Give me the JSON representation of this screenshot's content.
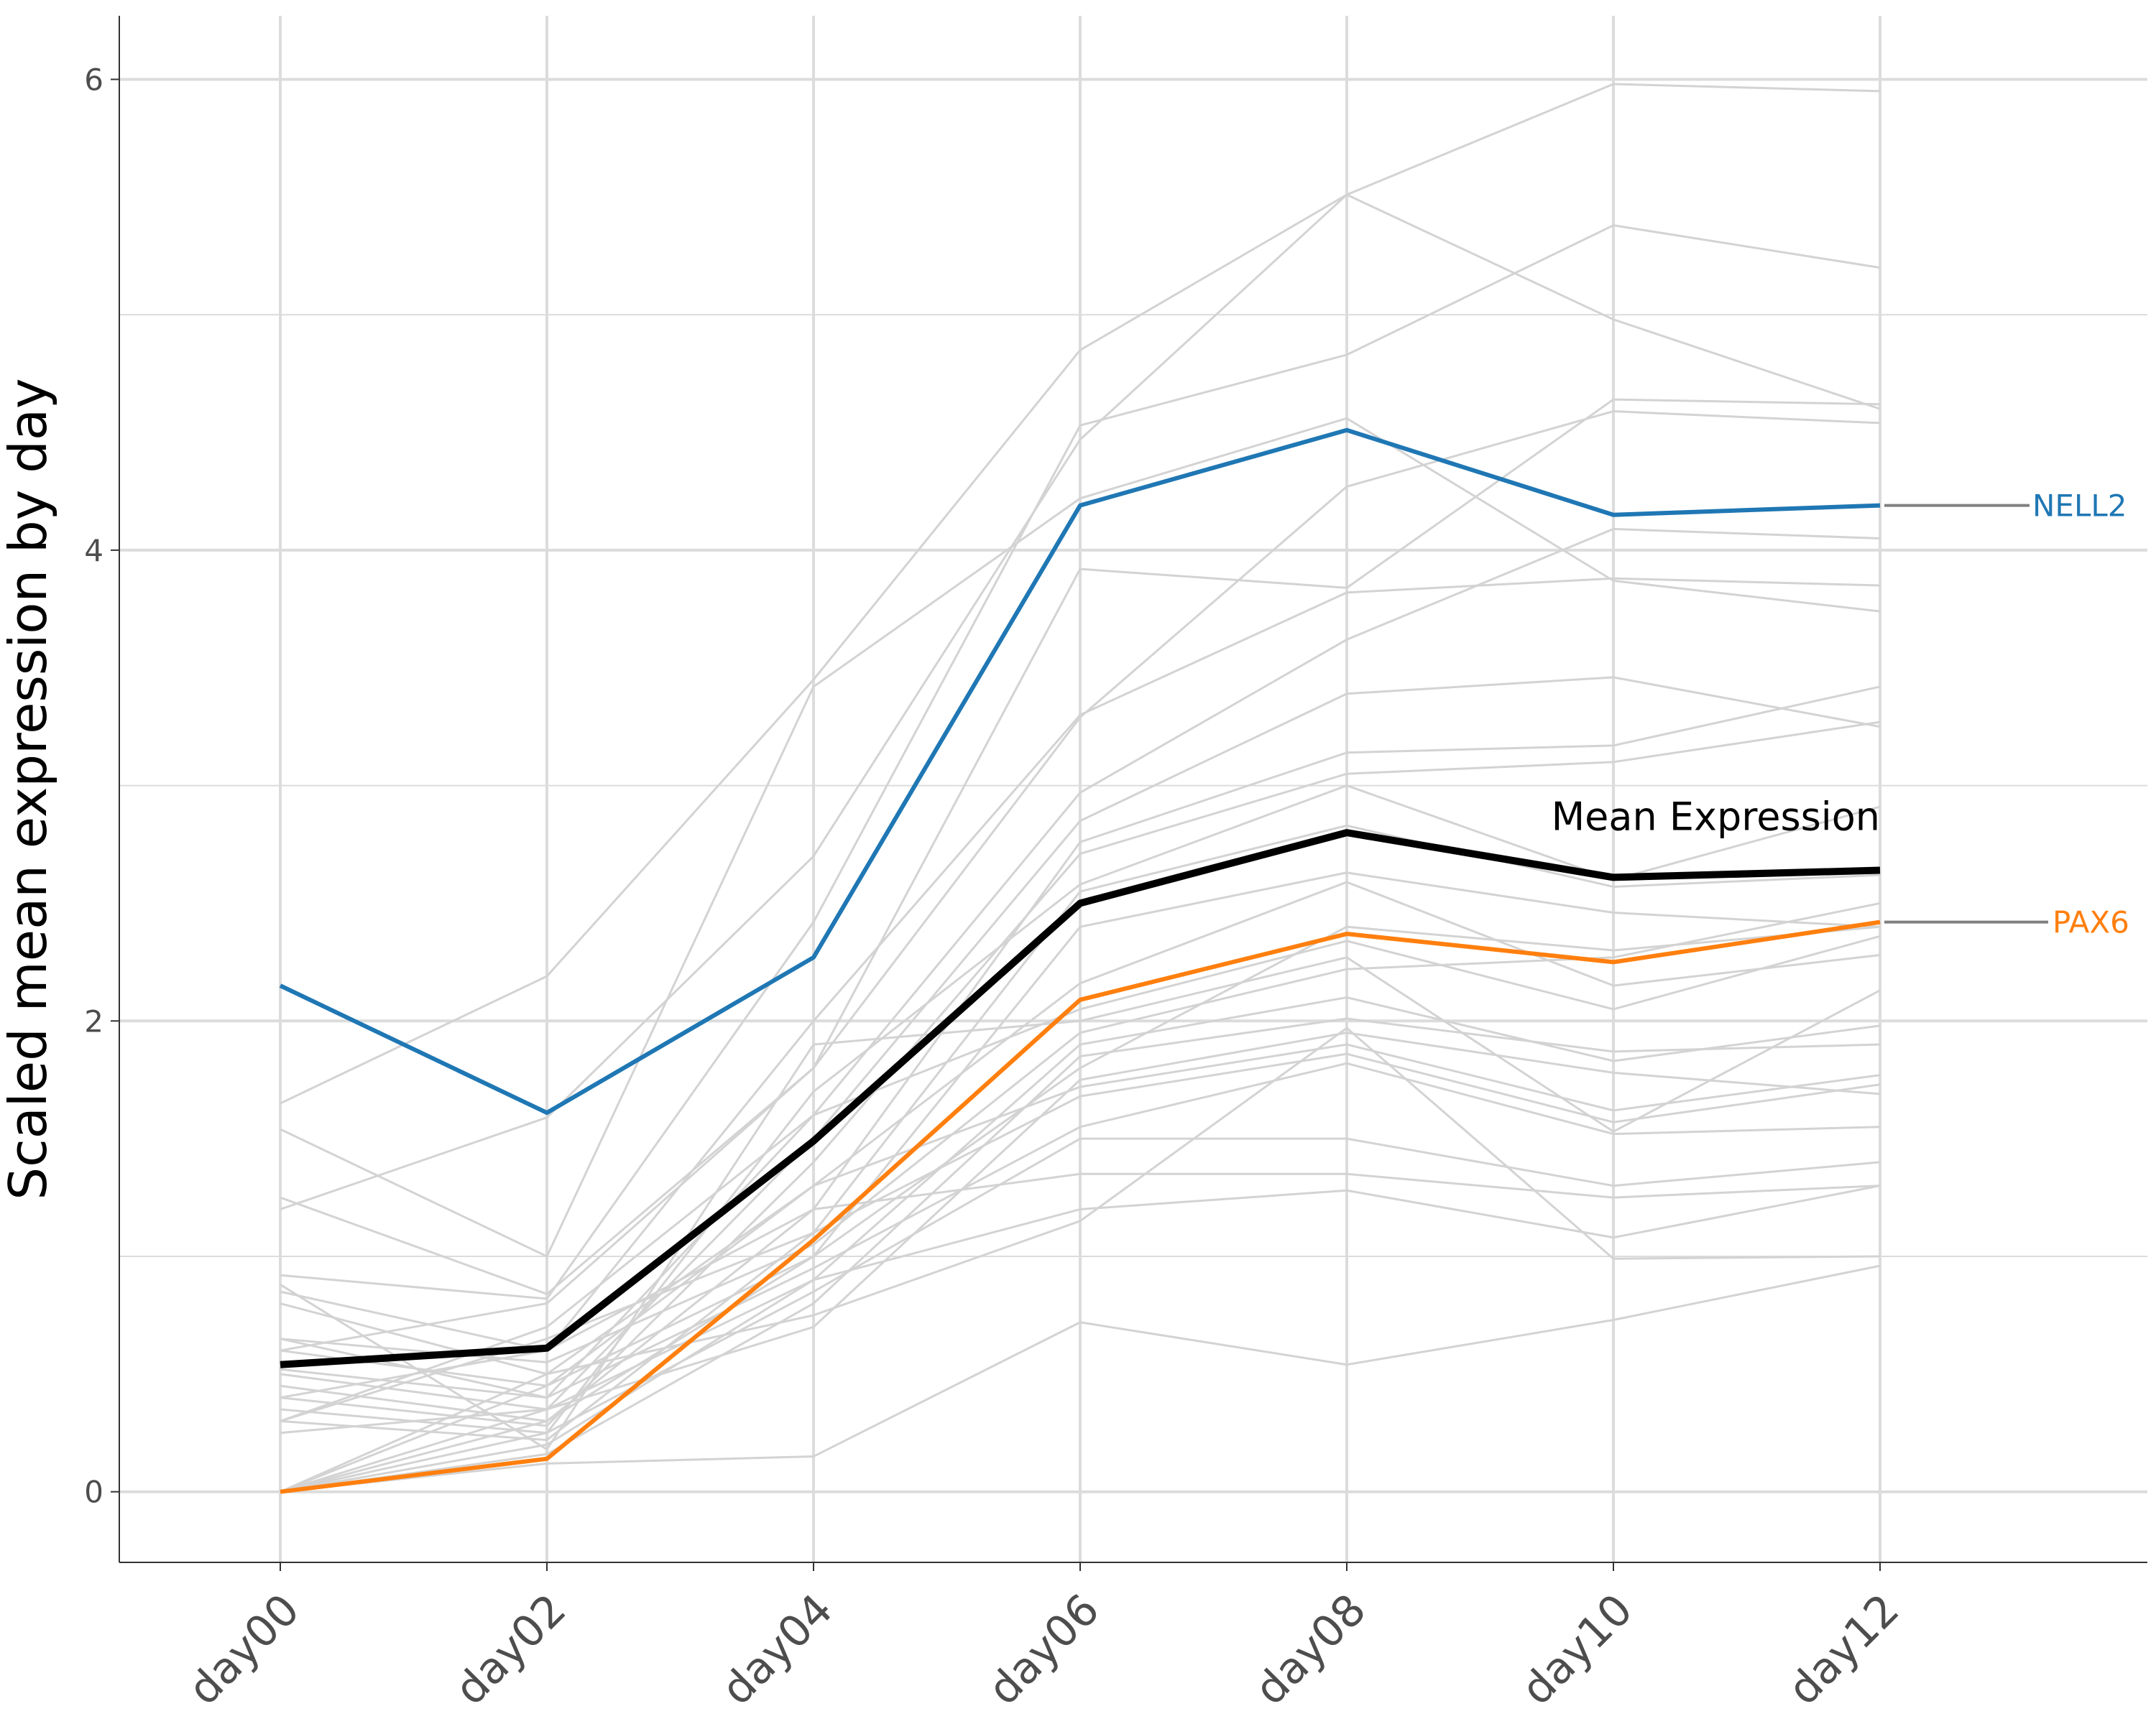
{
  "chart_data": {
    "type": "line",
    "title": "",
    "xlabel": "",
    "ylabel": "Scaled mean expression by day",
    "categories": [
      "day00",
      "day02",
      "day04",
      "day06",
      "day08",
      "day10",
      "day12"
    ],
    "ylim": [
      -0.3,
      6.27
    ],
    "yticks": [
      0,
      2,
      4,
      6
    ],
    "grid": true,
    "legend": "none",
    "colors": {
      "background_line": "#d3d3d3",
      "mean": "#000000",
      "NELL2": "#1f77b4",
      "PAX6": "#ff7f0e",
      "connector": "#808080",
      "grid": "#dcdcdc",
      "tick_text": "#4d4d4d"
    },
    "background_series": [
      [
        1.65,
        2.19,
        3.45,
        4.85,
        5.51,
        5.98,
        5.95
      ],
      [
        1.2,
        1.59,
        2.7,
        4.47,
        5.51,
        4.98,
        4.6
      ],
      [
        0.92,
        0.82,
        2.42,
        4.53,
        4.83,
        5.38,
        5.2
      ],
      [
        1.54,
        1.0,
        3.42,
        4.22,
        4.56,
        3.87,
        3.74
      ],
      [
        0.6,
        0.8,
        1.8,
        3.92,
        3.84,
        4.64,
        4.62
      ],
      [
        1.25,
        0.84,
        1.8,
        3.29,
        4.27,
        4.59,
        4.54
      ],
      [
        0.85,
        0.6,
        2.0,
        3.3,
        3.82,
        3.88,
        3.85
      ],
      [
        0.65,
        0.4,
        1.6,
        2.97,
        3.62,
        4.09,
        4.05
      ],
      [
        0.5,
        0.35,
        1.5,
        2.85,
        3.39,
        3.46,
        3.25
      ],
      [
        0.45,
        0.3,
        1.2,
        2.76,
        3.14,
        3.17,
        3.42
      ],
      [
        0.4,
        0.28,
        1.4,
        2.71,
        3.05,
        3.1,
        3.27
      ],
      [
        0.35,
        0.25,
        1.7,
        2.58,
        3.0,
        2.6,
        2.91
      ],
      [
        0.3,
        0.22,
        1.1,
        2.55,
        2.83,
        2.57,
        2.62
      ],
      [
        0.0,
        0.3,
        1.0,
        2.4,
        2.63,
        2.46,
        2.4
      ],
      [
        0.0,
        0.45,
        1.3,
        2.16,
        2.59,
        2.15,
        2.28
      ],
      [
        0.3,
        0.7,
        1.6,
        2.05,
        2.34,
        2.05,
        2.36
      ],
      [
        0.88,
        0.18,
        1.9,
        2.0,
        2.27,
        1.53,
        2.13
      ],
      [
        0.65,
        0.55,
        1.05,
        1.95,
        2.22,
        2.27,
        2.5
      ],
      [
        0.0,
        0.2,
        0.9,
        1.9,
        2.1,
        1.83,
        1.98
      ],
      [
        0.0,
        0.16,
        0.8,
        1.85,
        2.01,
        1.87,
        1.9
      ],
      [
        0.0,
        0.35,
        0.7,
        1.75,
        1.95,
        1.78,
        1.69
      ],
      [
        0.8,
        0.5,
        1.3,
        1.72,
        1.9,
        1.62,
        1.77
      ],
      [
        0.3,
        0.65,
        1.1,
        1.68,
        1.86,
        1.57,
        1.73
      ],
      [
        0.52,
        0.4,
        0.95,
        1.55,
        1.82,
        1.52,
        1.55
      ],
      [
        0.0,
        0.25,
        0.85,
        1.5,
        1.5,
        1.3,
        1.4
      ],
      [
        0.0,
        0.12,
        0.15,
        0.72,
        0.54,
        0.73,
        0.96
      ],
      [
        0.4,
        0.6,
        1.2,
        1.35,
        1.35,
        1.25,
        1.3
      ],
      [
        0.25,
        0.35,
        0.9,
        1.2,
        1.28,
        1.08,
        1.3
      ],
      [
        0.0,
        0.5,
        0.75,
        1.15,
        1.97,
        0.99,
        1.0
      ],
      [
        0.6,
        0.45,
        1.0,
        1.8,
        2.4,
        2.3,
        2.4
      ]
    ],
    "series": [
      {
        "name": "Mean Expression",
        "values": [
          0.54,
          0.61,
          1.49,
          2.5,
          2.8,
          2.61,
          2.64
        ]
      },
      {
        "name": "NELL2",
        "values": [
          2.15,
          1.61,
          2.27,
          4.19,
          4.51,
          4.15,
          4.19
        ]
      },
      {
        "name": "PAX6",
        "values": [
          0.0,
          0.14,
          1.07,
          2.09,
          2.37,
          2.25,
          2.42
        ]
      }
    ]
  }
}
